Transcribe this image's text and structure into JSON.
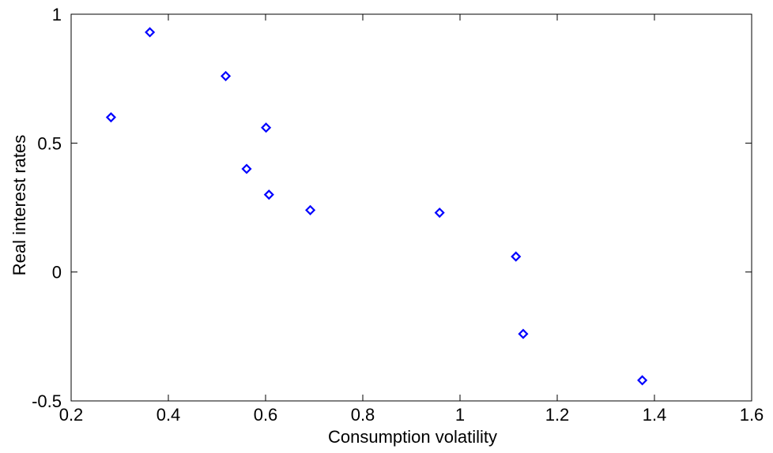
{
  "chart_data": {
    "type": "scatter",
    "title": "",
    "xlabel": "Consumption volatility",
    "ylabel": "Real interest rates",
    "xlim": [
      0.2,
      1.6
    ],
    "ylim": [
      -0.5,
      1
    ],
    "x_ticks": [
      0.2,
      0.4,
      0.6,
      0.8,
      1.0,
      1.2,
      1.4,
      1.6
    ],
    "x_tick_labels": [
      "0.2",
      "0.4",
      "0.6",
      "0.8",
      "1",
      "1.2",
      "1.4",
      "1.6"
    ],
    "y_ticks": [
      -0.5,
      0,
      0.5,
      1
    ],
    "y_tick_labels": [
      "-0.5",
      "0",
      "0.5",
      "1"
    ],
    "grid": false,
    "marker": "diamond",
    "marker_color": "#0000ff",
    "series": [
      {
        "points": [
          {
            "x": 0.282,
            "y": 0.6
          },
          {
            "x": 0.362,
            "y": 0.93
          },
          {
            "x": 0.518,
            "y": 0.76
          },
          {
            "x": 0.561,
            "y": 0.4
          },
          {
            "x": 0.601,
            "y": 0.56
          },
          {
            "x": 0.607,
            "y": 0.3
          },
          {
            "x": 0.692,
            "y": 0.24
          },
          {
            "x": 0.958,
            "y": 0.23
          },
          {
            "x": 1.115,
            "y": 0.06
          },
          {
            "x": 1.13,
            "y": -0.24
          },
          {
            "x": 1.375,
            "y": -0.42
          }
        ]
      }
    ]
  }
}
